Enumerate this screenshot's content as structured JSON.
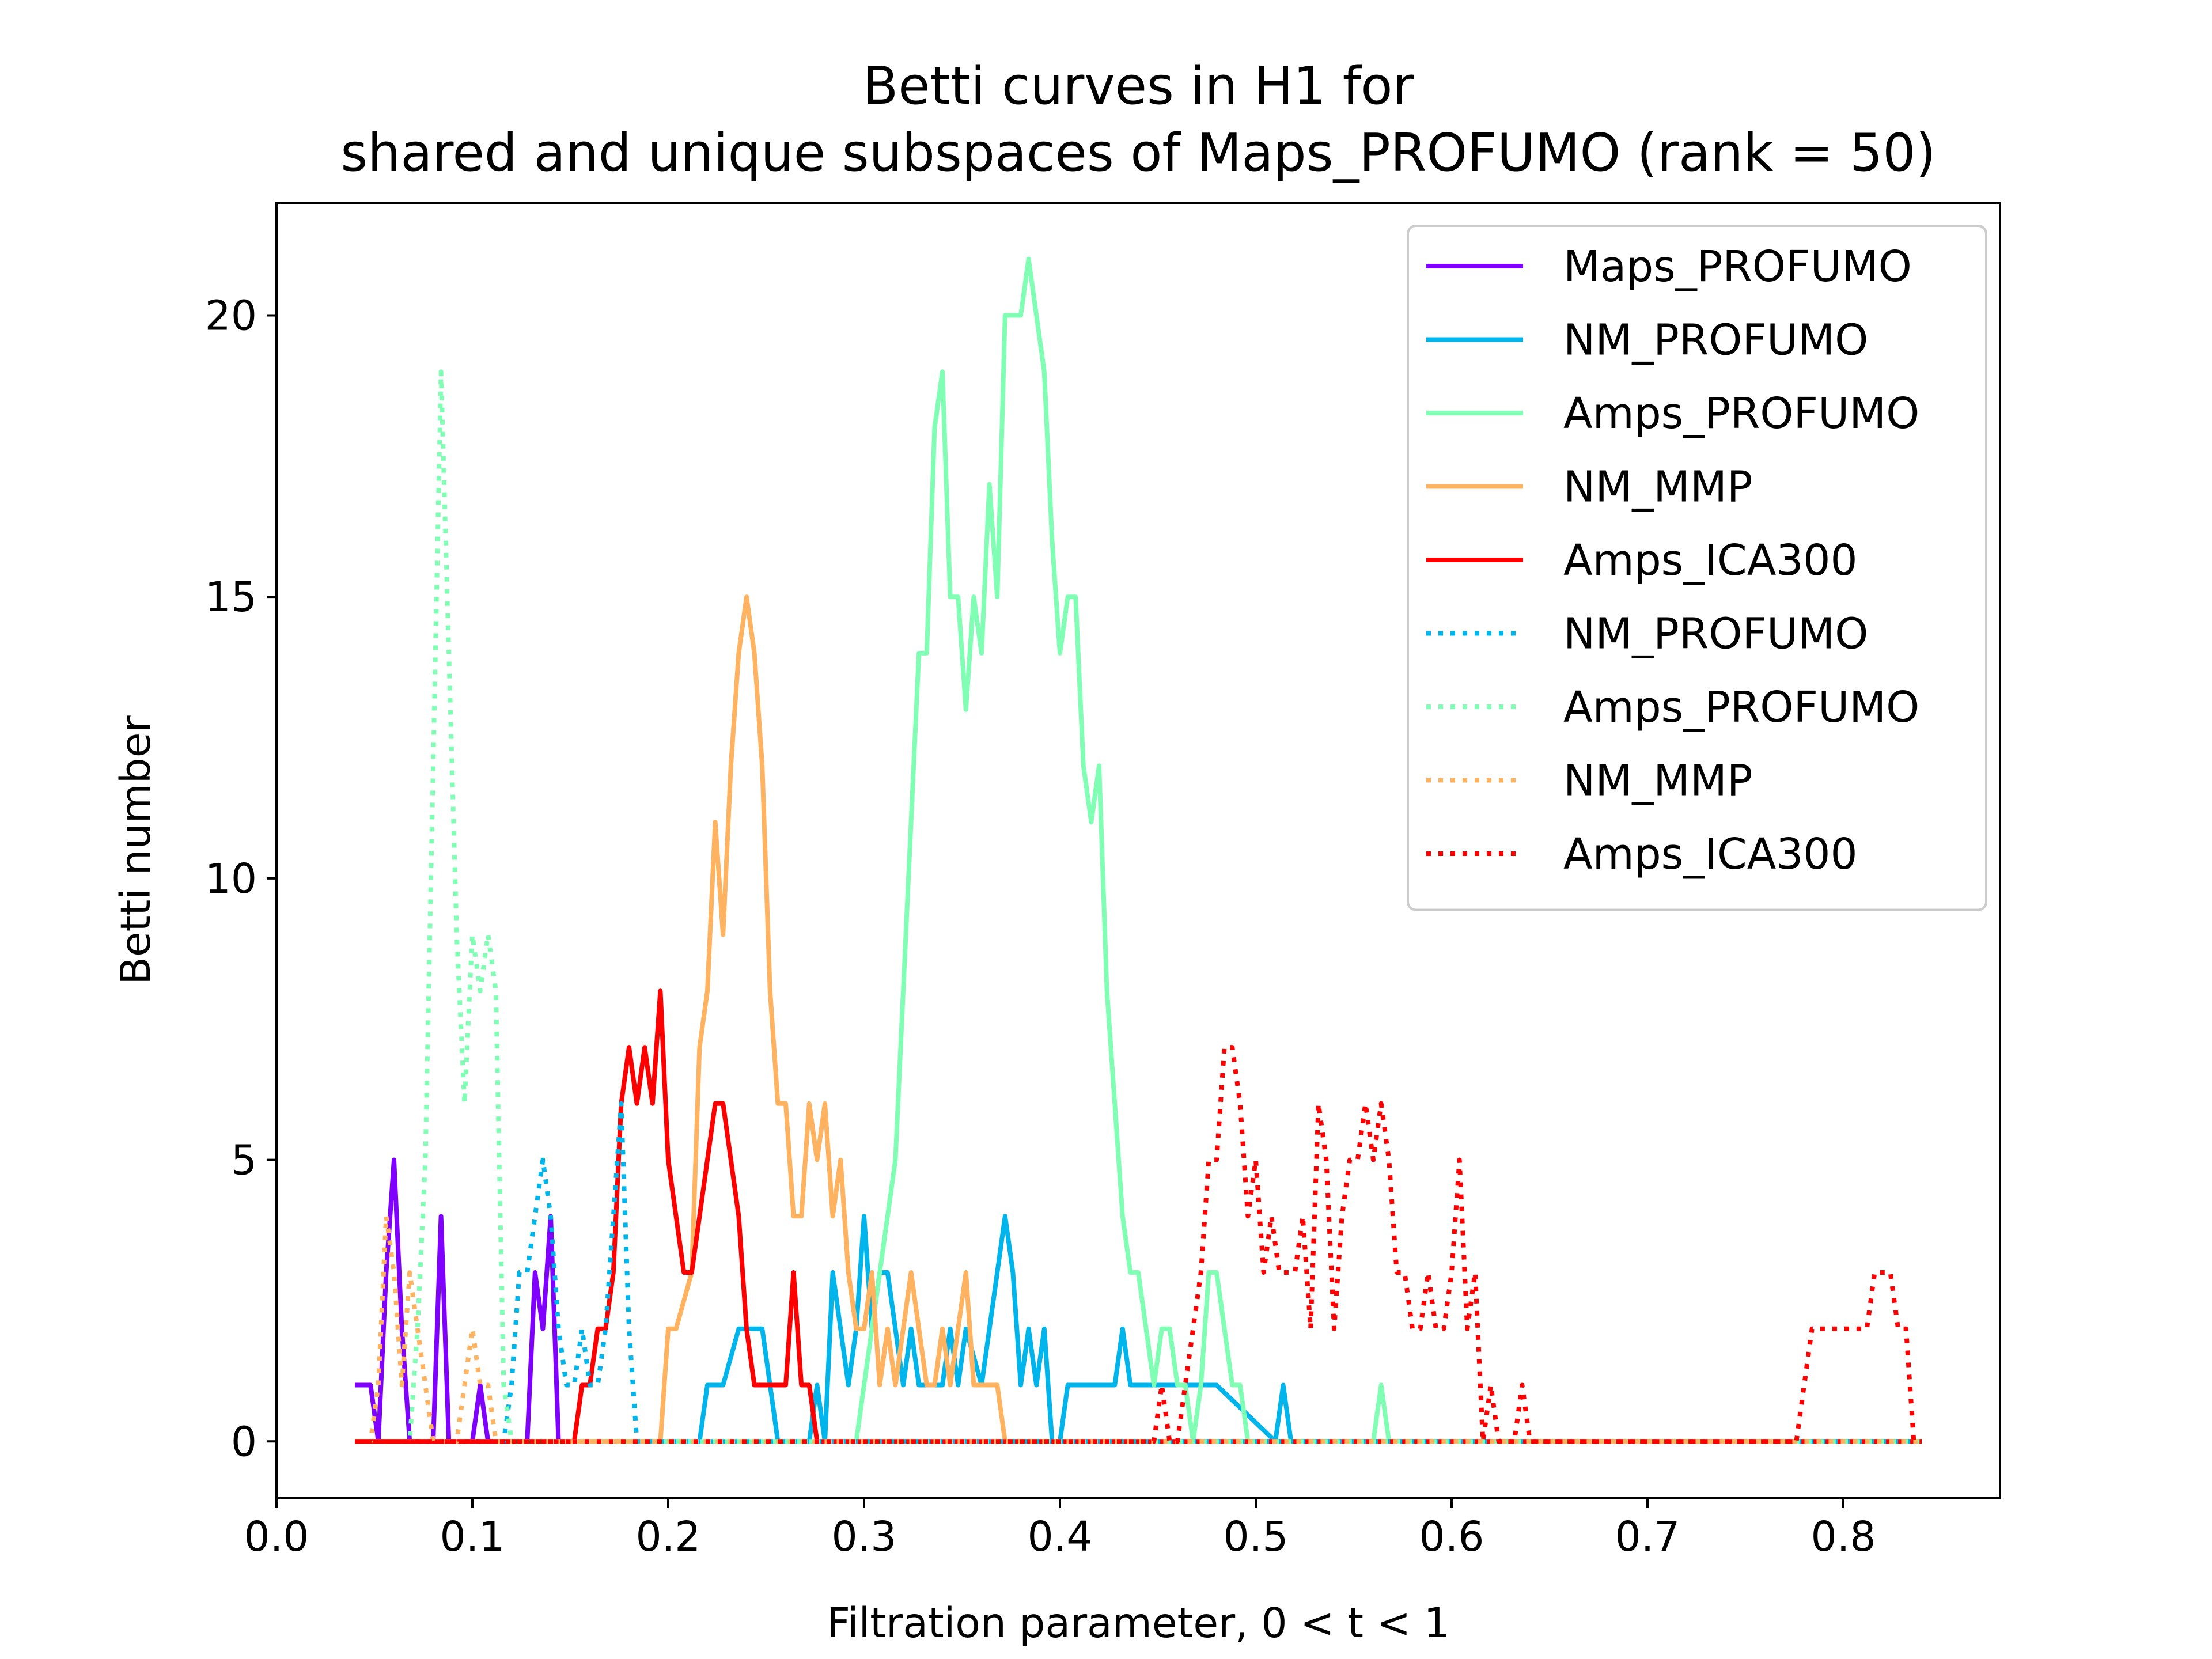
{
  "chart_data": {
    "type": "line",
    "title": "Betti curves in H1 for",
    "subtitle": "shared and unique subspaces of Maps_PROFUMO (rank = 50)",
    "xlabel": "Filtration parameter, 0 < t < 1",
    "ylabel": "Betti number",
    "xlim": [
      0.0,
      0.88
    ],
    "ylim": [
      -1,
      22
    ],
    "xticks": [
      "0.0",
      "0.1",
      "0.2",
      "0.3",
      "0.4",
      "0.5",
      "0.6",
      "0.7",
      "0.8"
    ],
    "yticks": [
      "0",
      "5",
      "10",
      "15",
      "20"
    ],
    "grid": false,
    "legend_position": "top-right",
    "series": [
      {
        "name": "Maps_PROFUMO",
        "color": "#8000ff",
        "style": "solid",
        "x": [
          0.04,
          0.048,
          0.052,
          0.056,
          0.06,
          0.064,
          0.068,
          0.08,
          0.084,
          0.088,
          0.1,
          0.104,
          0.108,
          0.128,
          0.132,
          0.136,
          0.14,
          0.144,
          0.148
        ],
        "y": [
          1,
          1,
          0,
          3,
          5,
          2,
          0,
          0,
          4,
          0,
          0,
          1,
          0,
          0,
          3,
          2,
          4,
          0,
          0
        ]
      },
      {
        "name": "NM_PROFUMO",
        "color": "#00b5eb",
        "style": "solid",
        "x": [
          0.04,
          0.216,
          0.22,
          0.228,
          0.236,
          0.24,
          0.248,
          0.252,
          0.256,
          0.272,
          0.276,
          0.28,
          0.284,
          0.288,
          0.292,
          0.296,
          0.3,
          0.304,
          0.308,
          0.312,
          0.316,
          0.32,
          0.324,
          0.328,
          0.332,
          0.34,
          0.344,
          0.348,
          0.352,
          0.36,
          0.364,
          0.368,
          0.372,
          0.376,
          0.38,
          0.384,
          0.388,
          0.392,
          0.396,
          0.4,
          0.404,
          0.408,
          0.412,
          0.428,
          0.432,
          0.436,
          0.44,
          0.48,
          0.51,
          0.514,
          0.518,
          0.84
        ],
        "y": [
          0,
          0,
          1,
          1,
          2,
          2,
          2,
          1,
          0,
          0,
          1,
          0,
          3,
          2,
          1,
          2,
          4,
          2,
          3,
          3,
          2,
          1,
          2,
          1,
          1,
          1,
          2,
          1,
          2,
          1,
          2,
          3,
          4,
          3,
          1,
          2,
          1,
          2,
          0,
          0,
          1,
          1,
          1,
          1,
          2,
          1,
          1,
          1,
          0,
          1,
          0,
          0
        ]
      },
      {
        "name": "Amps_PROFUMO",
        "color": "#80ffb4",
        "style": "solid",
        "x": [
          0.04,
          0.296,
          0.3,
          0.308,
          0.316,
          0.32,
          0.328,
          0.332,
          0.336,
          0.34,
          0.344,
          0.348,
          0.352,
          0.356,
          0.36,
          0.364,
          0.368,
          0.372,
          0.376,
          0.38,
          0.384,
          0.388,
          0.392,
          0.396,
          0.4,
          0.404,
          0.408,
          0.412,
          0.416,
          0.42,
          0.424,
          0.428,
          0.432,
          0.436,
          0.44,
          0.444,
          0.448,
          0.452,
          0.456,
          0.46,
          0.464,
          0.468,
          0.472,
          0.476,
          0.48,
          0.484,
          0.488,
          0.492,
          0.496,
          0.56,
          0.564,
          0.568,
          0.84
        ],
        "y": [
          0,
          0,
          1,
          3,
          5,
          8,
          14,
          14,
          18,
          19,
          15,
          15,
          13,
          15,
          14,
          17,
          15,
          20,
          20,
          20,
          21,
          20,
          19,
          16,
          14,
          15,
          15,
          12,
          11,
          12,
          8,
          6,
          4,
          3,
          3,
          2,
          1,
          2,
          2,
          1,
          1,
          0,
          1,
          3,
          3,
          2,
          1,
          1,
          0,
          0,
          1,
          0,
          0
        ]
      },
      {
        "name": "NM_MMP",
        "color": "#ffb360",
        "style": "solid",
        "x": [
          0.04,
          0.196,
          0.2,
          0.204,
          0.212,
          0.216,
          0.22,
          0.224,
          0.228,
          0.232,
          0.236,
          0.24,
          0.244,
          0.248,
          0.252,
          0.256,
          0.26,
          0.264,
          0.268,
          0.272,
          0.276,
          0.28,
          0.284,
          0.288,
          0.292,
          0.296,
          0.3,
          0.304,
          0.308,
          0.312,
          0.316,
          0.32,
          0.324,
          0.328,
          0.332,
          0.336,
          0.34,
          0.344,
          0.348,
          0.352,
          0.356,
          0.36,
          0.364,
          0.368,
          0.372,
          0.376,
          0.84
        ],
        "y": [
          0,
          0,
          2,
          2,
          3,
          7,
          8,
          11,
          9,
          12,
          14,
          15,
          14,
          12,
          8,
          6,
          6,
          4,
          4,
          6,
          5,
          6,
          4,
          5,
          3,
          2,
          2,
          3,
          1,
          2,
          1,
          2,
          3,
          2,
          1,
          1,
          2,
          1,
          2,
          3,
          1,
          1,
          1,
          1,
          0,
          0,
          0
        ]
      },
      {
        "name": "Amps_ICA300",
        "color": "#ff0000",
        "style": "solid",
        "x": [
          0.04,
          0.152,
          0.156,
          0.16,
          0.164,
          0.168,
          0.172,
          0.176,
          0.18,
          0.184,
          0.188,
          0.192,
          0.196,
          0.2,
          0.204,
          0.208,
          0.212,
          0.216,
          0.22,
          0.224,
          0.228,
          0.232,
          0.236,
          0.24,
          0.244,
          0.26,
          0.264,
          0.268,
          0.272,
          0.276,
          0.84
        ],
        "y": [
          0,
          0,
          1,
          1,
          2,
          2,
          3,
          6,
          7,
          6,
          7,
          6,
          8,
          5,
          4,
          3,
          3,
          4,
          5,
          6,
          6,
          5,
          4,
          2,
          1,
          1,
          3,
          1,
          1,
          0,
          0
        ]
      },
      {
        "name": "NM_PROFUMO",
        "color": "#00b5eb",
        "style": "dotted",
        "x": [
          0.04,
          0.116,
          0.12,
          0.124,
          0.128,
          0.132,
          0.136,
          0.14,
          0.144,
          0.148,
          0.152,
          0.156,
          0.16,
          0.164,
          0.168,
          0.172,
          0.176,
          0.18,
          0.184,
          0.84
        ],
        "y": [
          0,
          0,
          1,
          3,
          3,
          4,
          5,
          4,
          2,
          1,
          1,
          2,
          1,
          1,
          2,
          4,
          6,
          2,
          0,
          0
        ]
      },
      {
        "name": "Amps_PROFUMO",
        "color": "#80ffb4",
        "style": "dotted",
        "x": [
          0.04,
          0.068,
          0.072,
          0.076,
          0.08,
          0.084,
          0.088,
          0.092,
          0.096,
          0.1,
          0.104,
          0.108,
          0.112,
          0.116,
          0.12,
          0.84
        ],
        "y": [
          0,
          0,
          2,
          5,
          12,
          19,
          14,
          9,
          6,
          9,
          8,
          9,
          8,
          1,
          0,
          0
        ]
      },
      {
        "name": "NM_MMP",
        "color": "#ffb360",
        "style": "dotted",
        "x": [
          0.04,
          0.048,
          0.052,
          0.056,
          0.06,
          0.064,
          0.068,
          0.072,
          0.076,
          0.08,
          0.084,
          0.092,
          0.096,
          0.1,
          0.104,
          0.108,
          0.112,
          0.84
        ],
        "y": [
          0,
          0,
          1,
          4,
          3,
          1,
          3,
          2,
          1,
          0,
          0,
          0,
          1,
          2,
          1,
          1,
          0,
          0
        ]
      },
      {
        "name": "Amps_ICA300",
        "color": "#ff0000",
        "style": "dotted",
        "x": [
          0.04,
          0.448,
          0.452,
          0.456,
          0.46,
          0.464,
          0.468,
          0.472,
          0.476,
          0.48,
          0.484,
          0.488,
          0.492,
          0.496,
          0.5,
          0.504,
          0.508,
          0.512,
          0.516,
          0.52,
          0.524,
          0.528,
          0.532,
          0.536,
          0.54,
          0.544,
          0.548,
          0.552,
          0.556,
          0.56,
          0.564,
          0.568,
          0.572,
          0.576,
          0.58,
          0.584,
          0.588,
          0.592,
          0.596,
          0.6,
          0.604,
          0.608,
          0.612,
          0.616,
          0.62,
          0.624,
          0.628,
          0.632,
          0.636,
          0.64,
          0.644,
          0.648,
          0.776,
          0.78,
          0.784,
          0.8,
          0.804,
          0.812,
          0.816,
          0.82,
          0.824,
          0.828,
          0.832,
          0.836,
          0.84
        ],
        "y": [
          0,
          0,
          1,
          0,
          0,
          1,
          2,
          3,
          5,
          5,
          7,
          7,
          6,
          4,
          5,
          3,
          4,
          3,
          3,
          3,
          4,
          2,
          6,
          5,
          2,
          4,
          5,
          5,
          6,
          5,
          6,
          5,
          3,
          3,
          2,
          2,
          3,
          2,
          2,
          3,
          5,
          2,
          3,
          0,
          1,
          0,
          0,
          0,
          1,
          0,
          0,
          0,
          0,
          1,
          2,
          2,
          2,
          2,
          3,
          3,
          3,
          2,
          2,
          0,
          0
        ]
      }
    ]
  }
}
